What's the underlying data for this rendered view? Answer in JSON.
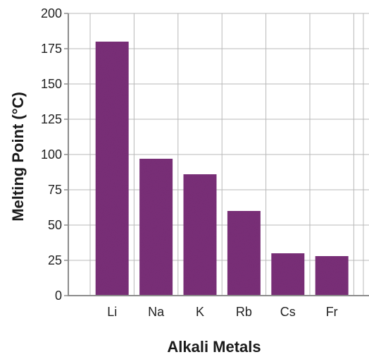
{
  "chart_data": {
    "type": "bar",
    "title": "",
    "xlabel": "Alkali Metals",
    "ylabel": "Melting Point (°C)",
    "categories": [
      "Li",
      "Na",
      "K",
      "Rb",
      "Cs",
      "Fr"
    ],
    "values": [
      180,
      97,
      86,
      60,
      30,
      28
    ],
    "ylim": [
      0,
      200
    ],
    "yticks": [
      0,
      25,
      50,
      75,
      100,
      125,
      150,
      175,
      200
    ],
    "ytick_labels": [
      "0",
      "25",
      "50",
      "75",
      "100",
      "125",
      "150",
      "175",
      "200"
    ],
    "grid": true,
    "bar_color": "#7a2e78",
    "grid_color": "#b8b8b8",
    "axis_color": "#8c8c8c"
  }
}
